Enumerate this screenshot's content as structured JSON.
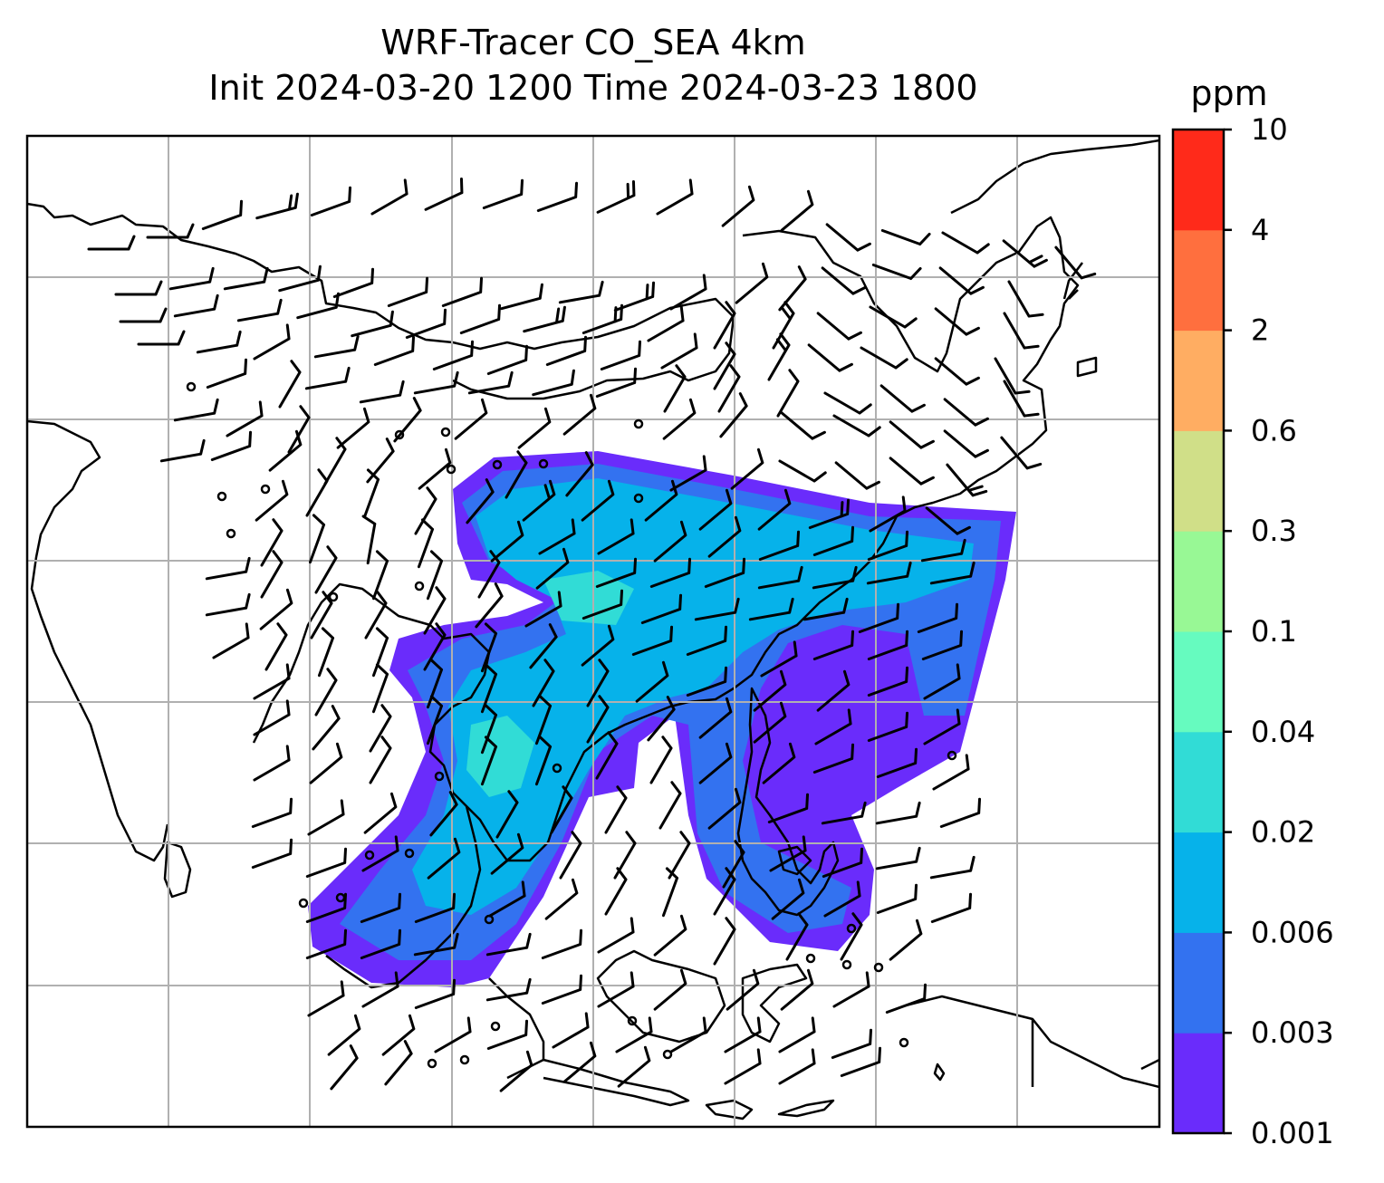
{
  "title": {
    "line1": "WRF-Tracer CO_SEA 4km",
    "line2": "Init 2024-03-20 1200 Time 2024-03-23 1800"
  },
  "colorbar": {
    "unit": "ppm",
    "levels": [
      "0.001",
      "0.003",
      "0.006",
      "0.02",
      "0.04",
      "0.1",
      "0.3",
      "0.6",
      "2",
      "4",
      "10"
    ],
    "colors": [
      "#6a2cfb",
      "#3372f0",
      "#06b2ea",
      "#31dcd6",
      "#66fbbf",
      "#98f895",
      "#d0df88",
      "#ffad62",
      "#ff6f3e",
      "#ff2a1a"
    ]
  },
  "map": {
    "gridlines": true,
    "coastline_color": "#000000",
    "grid_color": "#b0b0b0"
  }
}
